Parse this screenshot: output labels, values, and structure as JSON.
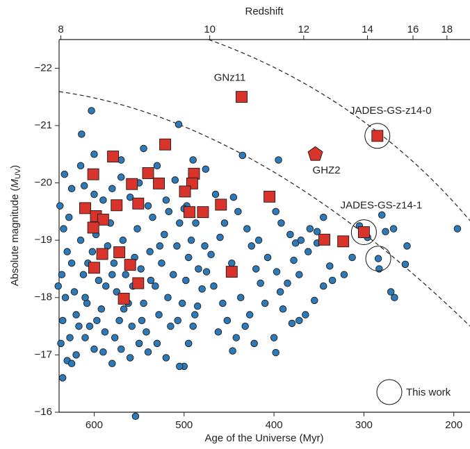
{
  "chart_data": {
    "type": "scatter",
    "x_label": "Age of the Universe (Myr)",
    "x2_label": "Redshift",
    "y_label": [
      "Absolute magnitude (",
      "M",
      "UV",
      ")"
    ],
    "xlim": [
      639,
      182
    ],
    "xticks": [
      600,
      500,
      400,
      300,
      200
    ],
    "x2ticks": [
      8,
      10,
      12,
      14,
      16,
      18
    ],
    "ylim": [
      -16,
      -22.5
    ],
    "yticks": [
      {
        "value": -22,
        "label": "−22"
      },
      {
        "value": -21,
        "label": "−21"
      },
      {
        "value": -20,
        "label": "−20"
      },
      {
        "value": -19,
        "label": "−19"
      },
      {
        "value": -18,
        "label": "−18"
      },
      {
        "value": -17,
        "label": "−17"
      },
      {
        "value": -16,
        "label": "−16"
      }
    ],
    "series": [
      {
        "marker": "circle",
        "color": "#2e7ab8",
        "x": [
          603,
          614,
          633,
          611,
          506,
          435,
          395,
          476,
          554,
          635,
          196,
          398,
          446,
          252,
          254,
          267,
          280,
          283,
          284,
          270,
          266,
          276,
          296,
          305,
          313,
          322,
          338,
          335,
          345,
          355,
          365,
          372,
          380,
          390,
          393,
          378,
          376,
          382,
          392,
          398,
          370,
          360,
          352,
          345,
          352,
          362,
          372,
          385,
          400,
          410,
          415,
          420,
          425,
          430,
          440,
          445,
          455,
          460,
          470,
          475,
          480,
          485,
          490,
          495,
          500,
          505,
          520,
          530,
          540,
          550,
          560,
          570,
          580,
          590,
          600,
          610,
          620,
          630,
          637,
          625,
          635,
          632,
          636,
          630,
          634,
          638,
          628,
          625,
          622,
          620,
          615,
          612,
          608,
          605,
          602,
          598,
          595,
          592,
          588,
          585,
          582,
          578,
          575,
          572,
          568,
          565,
          562,
          558,
          555,
          552,
          548,
          545,
          542,
          538,
          535,
          532,
          528,
          525,
          522,
          518,
          515,
          512,
          508,
          505,
          502,
          498,
          495,
          492,
          488,
          484,
          640,
          627,
          617,
          607,
          597,
          587,
          577,
          567,
          557,
          547,
          537,
          527,
          517,
          507,
          497,
          487,
          477,
          467,
          457,
          447,
          437,
          427,
          417,
          407,
          397,
          462,
          452,
          442,
          432,
          422,
          600,
          590,
          580,
          570,
          560,
          550,
          540,
          530,
          520,
          510,
          600,
          570,
          545,
          625,
          615,
          490,
          465,
          500,
          610,
          580
        ],
        "values": [
          -21.26,
          -20.85,
          -20.15,
          -19.95,
          -21.02,
          -20.48,
          -20.4,
          -20.24,
          -15.93,
          -16.6,
          -19.2,
          -17.04,
          -17.07,
          -18.9,
          -18.58,
          -19.2,
          -19.44,
          -18.5,
          -18.68,
          -18.1,
          -18.0,
          -19.15,
          -19.05,
          -19.25,
          -18.7,
          -18.4,
          -18.55,
          -18.3,
          -18.2,
          -17.95,
          -17.7,
          -17.6,
          -17.55,
          -17.8,
          -18.1,
          -18.65,
          -18.95,
          -19.1,
          -19.3,
          -19.5,
          -19.0,
          -19.2,
          -19.15,
          -19.4,
          -18.95,
          -18.8,
          -18.4,
          -18.25,
          -17.3,
          -17.9,
          -18.25,
          -18.5,
          -18.9,
          -19.2,
          -19.5,
          -19.75,
          -19.3,
          -19.05,
          -18.75,
          -18.45,
          -18.15,
          -17.85,
          -17.5,
          -17.2,
          -16.8,
          -16.8,
          -16.95,
          -17.2,
          -17.05,
          -17.2,
          -16.95,
          -17.1,
          -16.85,
          -17.05,
          -17.1,
          -17.3,
          -17.0,
          -16.9,
          -17.2,
          -16.85,
          -17.6,
          -18.0,
          -18.4,
          -18.8,
          -19.2,
          -19.6,
          -19.4,
          -18.6,
          -18.1,
          -17.7,
          -19.0,
          -18.4,
          -17.9,
          -17.5,
          -18.8,
          -19.1,
          -18.3,
          -17.8,
          -17.4,
          -18.9,
          -19.3,
          -18.6,
          -18.1,
          -17.6,
          -19.0,
          -18.4,
          -17.9,
          -17.5,
          -18.7,
          -19.2,
          -18.5,
          -17.9,
          -17.4,
          -18.8,
          -19.4,
          -18.2,
          -17.7,
          -18.6,
          -19.1,
          -18.0,
          -17.5,
          -18.4,
          -18.9,
          -19.3,
          -17.9,
          -18.3,
          -18.7,
          -19.0,
          -17.7,
          -18.5,
          -18.2,
          -17.3,
          -17.5,
          -18.6,
          -17.6,
          -18.2,
          -17.3,
          -17.8,
          -18.2,
          -17.6,
          -18.3,
          -18.9,
          -19.5,
          -17.6,
          -19.6,
          -19.3,
          -18.9,
          -18.2,
          -17.9,
          -18.6,
          -18.0,
          -17.7,
          -19.0,
          -18.7,
          -18.45,
          -17.4,
          -17.6,
          -17.3,
          -17.5,
          -17.2,
          -19.8,
          -19.7,
          -19.9,
          -20.1,
          -19.75,
          -20.0,
          -19.6,
          -20.3,
          -19.7,
          -20.05,
          -20.5,
          -20.4,
          -20.6,
          -19.9,
          -20.3,
          -20.4,
          -19.8,
          -19.55,
          -18.0,
          -18.4
        ]
      },
      {
        "marker": "square",
        "color": "#d8342b",
        "x": [
          436,
          285,
          300,
          601,
          579,
          521,
          540,
          558,
          528,
          489,
          491,
          499,
          610,
          598,
          590,
          575,
          551,
          494,
          479,
          459,
          405,
          601,
          591,
          572,
          560,
          600,
          551,
          567,
          447,
          344,
          323
        ],
        "values": [
          -21.5,
          -20.82,
          -19.14,
          -20.15,
          -20.46,
          -20.67,
          -20.17,
          -19.98,
          -19.99,
          -20.16,
          -19.99,
          -19.85,
          -19.56,
          -19.42,
          -19.36,
          -19.61,
          -19.64,
          -19.49,
          -19.49,
          -19.62,
          -19.76,
          -19.22,
          -18.76,
          -18.79,
          -18.57,
          -18.52,
          -18.25,
          -17.98,
          -18.45,
          -19.01,
          -18.98
        ],
        "labels": [
          "GNz11",
          "JADES-GS-z14-0",
          "JADES-GS-z14-1",
          null,
          null,
          null,
          null,
          null,
          null,
          null,
          null,
          null,
          null,
          null,
          null,
          null,
          null,
          null,
          null,
          null,
          null,
          null,
          null,
          null,
          null,
          null,
          null,
          null,
          null,
          null,
          null
        ]
      },
      {
        "marker": "pentagon",
        "color": "#d8342b",
        "x": [
          354
        ],
        "values": [
          -20.5
        ],
        "labels": [
          "GHZ2"
        ]
      },
      {
        "name": "This work",
        "marker": "ring",
        "color": "#111111",
        "x": [
          285,
          300,
          284
        ],
        "values": [
          -20.82,
          -19.14,
          -18.68
        ]
      }
    ]
  }
}
